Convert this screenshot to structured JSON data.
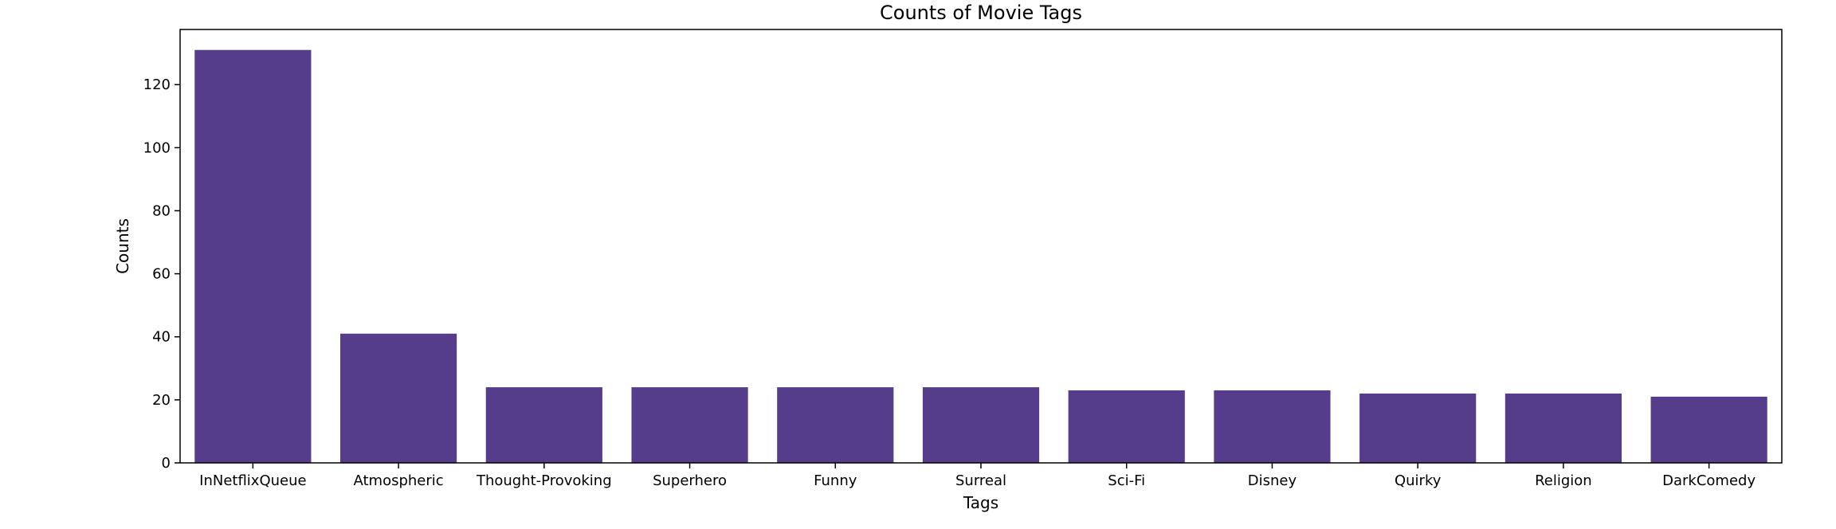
{
  "chart_data": {
    "type": "bar",
    "title": "Counts of Movie Tags",
    "xlabel": "Tags",
    "ylabel": "Counts",
    "categories": [
      "InNetflixQueue",
      "Atmospheric",
      "Thought-Provoking",
      "Superhero",
      "Funny",
      "Surreal",
      "Sci-Fi",
      "Disney",
      "Quirky",
      "Religion",
      "DarkComedy"
    ],
    "values": [
      131,
      41,
      24,
      24,
      24,
      24,
      23,
      23,
      22,
      22,
      21
    ],
    "ylim": [
      0,
      137.5
    ],
    "yticks": [
      0,
      20,
      40,
      60,
      80,
      100,
      120
    ],
    "grid": false,
    "bar_color": "#563d8b"
  }
}
